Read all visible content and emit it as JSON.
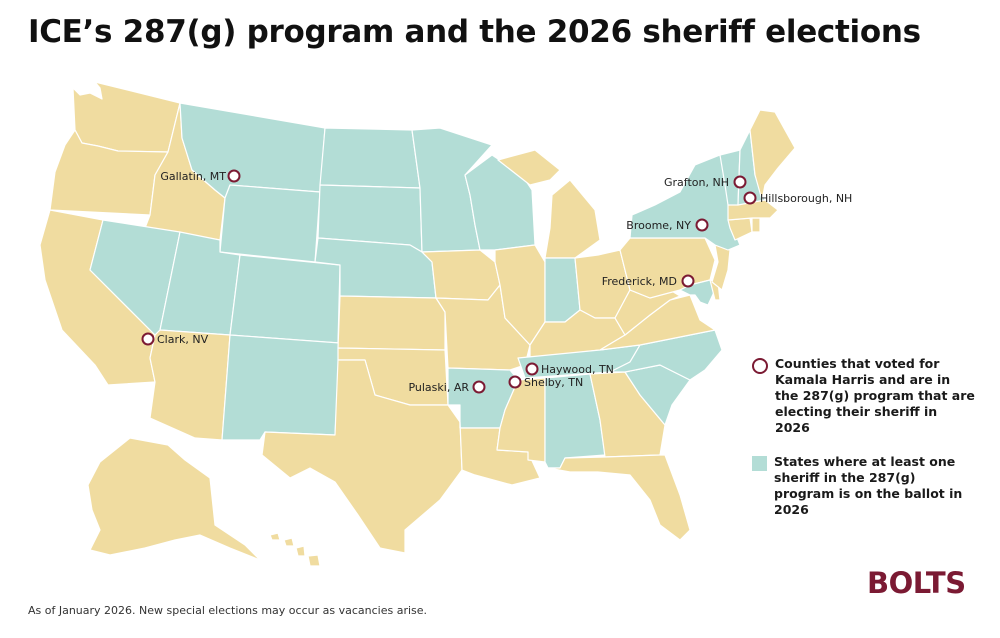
{
  "title": "ICE’s 287(g) program and the 2026 sheriff elections",
  "footnote": "As of January 2026. New special elections may occur as vacancies arise.",
  "logo": "BOLTS",
  "colors": {
    "state_highlight": "#b3ddd6",
    "state_other": "#f0dca0",
    "county_marker": "#7b1a33",
    "border": "#ffffff"
  },
  "legend": {
    "counties_label": "Counties that voted for Kamala Harris and are in the 287(g) program that are electing their sheriff in 2026",
    "states_label": "States where at least one sheriff in the 287(g) program is on the ballot in 2026"
  },
  "states_with_287g_sheriff_on_ballot": [
    "MT",
    "ND",
    "SD",
    "NE",
    "WY",
    "MN",
    "WI",
    "NV",
    "UT",
    "CO",
    "NM",
    "AR",
    "IN",
    "TN",
    "AL",
    "SC",
    "NC",
    "NY",
    "VT",
    "NH",
    "MD"
  ],
  "counties": [
    {
      "name": "Gallatin, MT"
    },
    {
      "name": "Clark, NV"
    },
    {
      "name": "Pulaski, AR"
    },
    {
      "name": "Haywood, TN"
    },
    {
      "name": "Shelby, TN"
    },
    {
      "name": "Frederick, MD"
    },
    {
      "name": "Broome, NY"
    },
    {
      "name": "Grafton, NH"
    },
    {
      "name": "Hillsborough, NH"
    }
  ]
}
